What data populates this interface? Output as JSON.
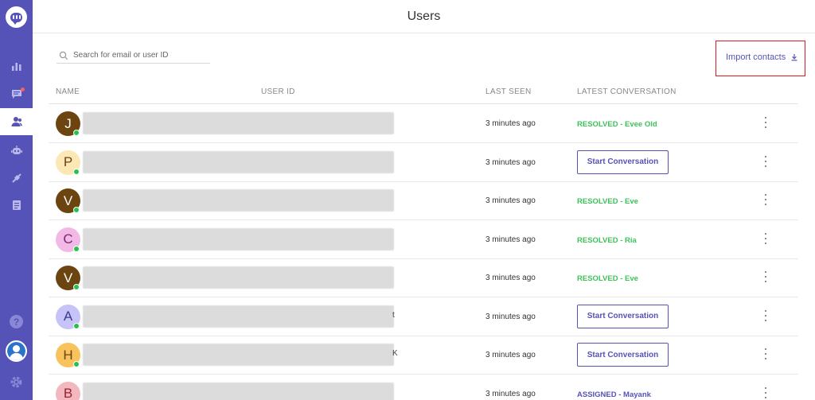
{
  "header": {
    "title": "Users"
  },
  "search": {
    "placeholder": "Search for email or user ID",
    "value": ""
  },
  "import": {
    "label": "Import contacts"
  },
  "columns": {
    "name": "NAME",
    "user_id": "USER ID",
    "last_seen": "LAST SEEN",
    "latest_conversation": "LATEST CONVERSATION"
  },
  "sidebar": {
    "items": [
      "reports-icon",
      "conversations-icon",
      "users-icon",
      "bot-icon",
      "integrations-icon",
      "docs-icon"
    ],
    "active": "users-icon",
    "accent": "#5553b7"
  },
  "rows": [
    {
      "initial": "J",
      "avatar_bg": "#6b4410",
      "avatar_fg": "#ffffff",
      "last_seen": "3 minutes ago",
      "conversation_type": "status",
      "status_class": "resolved",
      "status": "RESOLVED - Evee Old",
      "tail": ""
    },
    {
      "initial": "P",
      "avatar_bg": "#fde7b4",
      "avatar_fg": "#6b4410",
      "last_seen": "3 minutes ago",
      "conversation_type": "button",
      "button": "Start Conversation",
      "tail": ""
    },
    {
      "initial": "V",
      "avatar_bg": "#6b4410",
      "avatar_fg": "#ffffff",
      "last_seen": "3 minutes ago",
      "conversation_type": "status",
      "status_class": "resolved",
      "status": "RESOLVED - Eve",
      "tail": ""
    },
    {
      "initial": "C",
      "avatar_bg": "#f2b9e6",
      "avatar_fg": "#7a2a6b",
      "last_seen": "3 minutes ago",
      "conversation_type": "status",
      "status_class": "resolved",
      "status": "RESOLVED - Ria",
      "tail": ""
    },
    {
      "initial": "V",
      "avatar_bg": "#6b4410",
      "avatar_fg": "#ffffff",
      "last_seen": "3 minutes ago",
      "conversation_type": "status",
      "status_class": "resolved",
      "status": "RESOLVED - Eve",
      "tail": ""
    },
    {
      "initial": "A",
      "avatar_bg": "#c5c3f7",
      "avatar_fg": "#3b3a8f",
      "last_seen": "3 minutes ago",
      "conversation_type": "button",
      "button": "Start Conversation",
      "tail": "t"
    },
    {
      "initial": "H",
      "avatar_bg": "#f8c35c",
      "avatar_fg": "#6b4410",
      "last_seen": "3 minutes ago",
      "conversation_type": "button",
      "button": "Start Conversation",
      "tail": "K"
    },
    {
      "initial": "B",
      "avatar_bg": "#f3b7bf",
      "avatar_fg": "#9a2230",
      "last_seen": "3 minutes ago",
      "conversation_type": "status",
      "status_class": "assigned",
      "status": "ASSIGNED - Mayank",
      "tail": ""
    }
  ]
}
